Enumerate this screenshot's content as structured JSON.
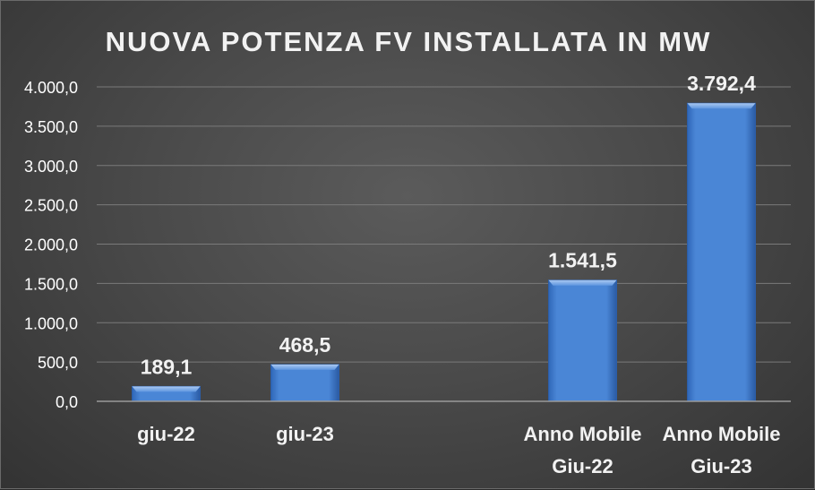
{
  "chart_data": {
    "type": "bar",
    "title": "NUOVA POTENZA FV INSTALLATA IN MW",
    "xlabel": "",
    "ylabel": "",
    "categories": [
      [
        "giu-22"
      ],
      [
        "giu-23"
      ],
      [
        ""
      ],
      [
        "Anno Mobile",
        "Giu-22"
      ],
      [
        "Anno Mobile",
        "Giu-23"
      ]
    ],
    "values": [
      189.1,
      468.5,
      null,
      1541.5,
      3792.4
    ],
    "data_labels": [
      "189,1",
      "468,5",
      "",
      "1.541,5",
      "3.792,4"
    ],
    "ylim": [
      0,
      4000
    ],
    "yticks": [
      0,
      500,
      1000,
      1500,
      2000,
      2500,
      3000,
      3500,
      4000
    ],
    "ytick_labels": [
      "0,0",
      "500,0",
      "1.000,0",
      "1.500,0",
      "2.000,0",
      "2.500,0",
      "3.000,0",
      "3.500,0",
      "4.000,0"
    ],
    "grid": true,
    "bar_color": "#4a86d6"
  }
}
